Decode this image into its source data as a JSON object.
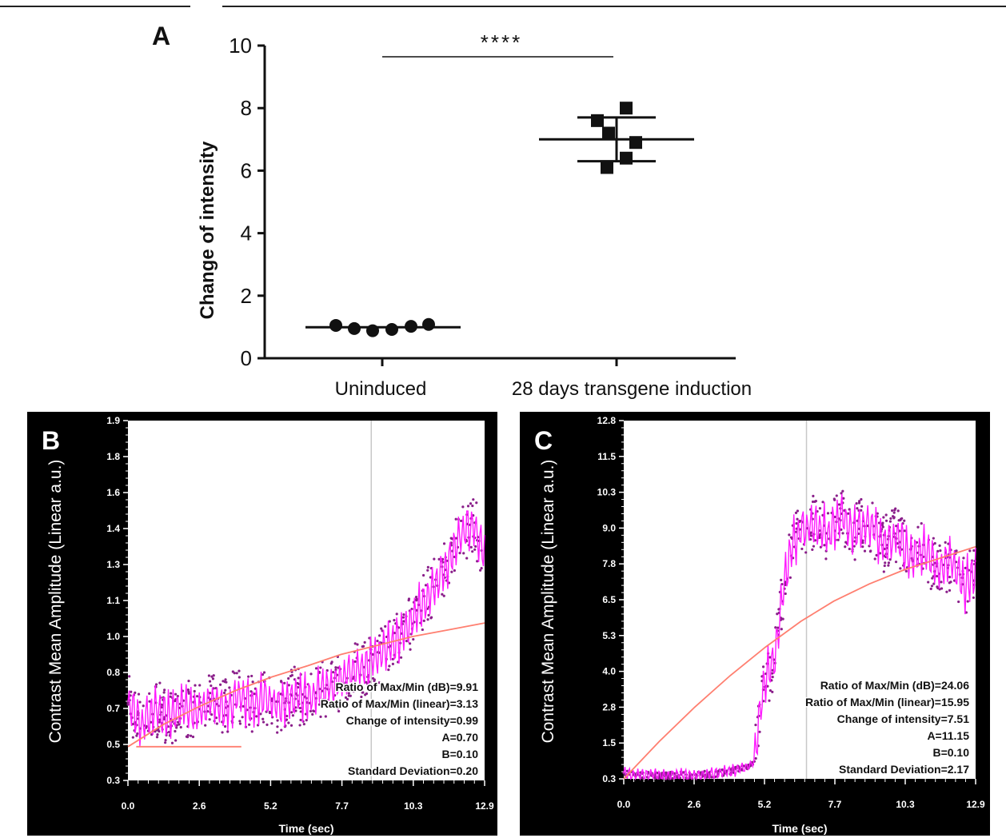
{
  "chart_data": [
    {
      "panel": "A",
      "type": "scatter",
      "ylabel": "Change of intensity",
      "ylim": [
        0,
        10
      ],
      "yticks": [
        "0",
        "2",
        "4",
        "6",
        "8",
        "10"
      ],
      "categories": [
        "Uninduced",
        "28 days transgene induction"
      ],
      "groups": [
        {
          "category": "Uninduced",
          "marker": "circle",
          "values": [
            1.05,
            0.95,
            0.88,
            0.92,
            1.02,
            1.08
          ],
          "mean": 0.99,
          "sd": 0.07
        },
        {
          "category": "28 days transgene induction",
          "marker": "square",
          "values": [
            8.0,
            7.6,
            7.2,
            6.9,
            6.4,
            6.1
          ],
          "mean": 7.0,
          "sd": 0.7
        }
      ],
      "significance": "****"
    },
    {
      "panel": "B",
      "type": "line",
      "xlabel": "Time (sec)",
      "ylabel": "Contrast Mean Amplitude  (Linear a.u.)",
      "xlim": [
        0,
        12.9
      ],
      "ylim": [
        0.3,
        1.9
      ],
      "xticks": [
        "0.0",
        "2.6",
        "5.2",
        "7.7",
        "10.3",
        "12.9"
      ],
      "yticks": [
        "0.3",
        "0.5",
        "0.7",
        "0.8",
        "1.0",
        "1.1",
        "1.3",
        "1.4",
        "1.6",
        "1.8",
        "1.9"
      ],
      "marker_time": 8.8,
      "fit_curve": {
        "x": [
          0,
          1.3,
          2.6,
          3.9,
          5.2,
          6.5,
          7.7,
          9.0,
          10.3,
          11.6,
          12.9
        ],
        "y": [
          0.45,
          0.55,
          0.63,
          0.7,
          0.76,
          0.81,
          0.86,
          0.9,
          0.94,
          0.97,
          1.0
        ]
      },
      "baseline_segment": {
        "x": [
          0.3,
          4.1
        ],
        "y": [
          0.45,
          0.45
        ]
      },
      "signal": {
        "x": [
          0.0,
          0.5,
          1.0,
          1.5,
          2.0,
          2.5,
          3.0,
          3.5,
          4.0,
          4.5,
          5.0,
          5.5,
          6.0,
          6.5,
          7.0,
          7.5,
          8.0,
          8.5,
          9.0,
          9.5,
          10.0,
          10.5,
          11.0,
          11.5,
          12.0,
          12.5,
          12.9
        ],
        "y": [
          0.65,
          0.55,
          0.62,
          0.58,
          0.63,
          0.6,
          0.66,
          0.62,
          0.68,
          0.64,
          0.67,
          0.63,
          0.68,
          0.66,
          0.7,
          0.72,
          0.78,
          0.8,
          0.85,
          0.9,
          0.97,
          1.05,
          1.15,
          1.25,
          1.38,
          1.45,
          1.3
        ]
      },
      "annotations": [
        "Ratio of Max/Min (dB)=9.91",
        "Ratio of Max/Min (linear)=3.13",
        "Change of intensity=0.99",
        "A=0.70",
        "B=0.10",
        "Standard Deviation=0.20"
      ]
    },
    {
      "panel": "C",
      "type": "line",
      "xlabel": "Time (sec)",
      "ylabel": "Contrast Mean Amplitude  (Linear a.u.)",
      "xlim": [
        0,
        12.9
      ],
      "ylim": [
        0.3,
        12.8
      ],
      "xticks": [
        "0.0",
        "2.6",
        "5.2",
        "7.7",
        "10.3",
        "12.9"
      ],
      "yticks": [
        "0.3",
        "1.5",
        "2.8",
        "4.0",
        "5.3",
        "6.5",
        "7.8",
        "9.0",
        "10.3",
        "11.5",
        "12.8"
      ],
      "marker_time": 6.7,
      "fit_curve": {
        "x": [
          0,
          1.3,
          2.6,
          3.9,
          5.2,
          6.5,
          7.7,
          9.0,
          10.3,
          11.6,
          12.9
        ],
        "y": [
          0.3,
          1.6,
          2.8,
          3.9,
          4.9,
          5.8,
          6.5,
          7.1,
          7.6,
          8.0,
          8.4
        ]
      },
      "signal": {
        "x": [
          0.0,
          0.5,
          1.0,
          1.5,
          2.0,
          2.5,
          3.0,
          3.5,
          4.0,
          4.5,
          4.8,
          5.0,
          5.2,
          5.5,
          5.8,
          6.0,
          6.2,
          6.5,
          7.0,
          7.5,
          8.0,
          8.5,
          9.0,
          9.5,
          10.0,
          10.5,
          11.0,
          11.5,
          12.0,
          12.5,
          12.9
        ],
        "y": [
          0.5,
          0.4,
          0.45,
          0.4,
          0.45,
          0.4,
          0.45,
          0.5,
          0.6,
          0.7,
          0.9,
          2.8,
          3.8,
          4.3,
          6.5,
          7.8,
          8.5,
          9.0,
          9.2,
          8.8,
          9.5,
          8.9,
          9.3,
          8.5,
          8.8,
          8.0,
          8.3,
          7.6,
          7.9,
          7.0,
          7.6
        ]
      },
      "annotations": [
        "Ratio of Max/Min (dB)=24.06",
        "Ratio of Max/Min (linear)=15.95",
        "Change of intensity=7.51",
        "A=11.15",
        "B=0.10",
        "Standard Deviation=2.17"
      ]
    }
  ]
}
